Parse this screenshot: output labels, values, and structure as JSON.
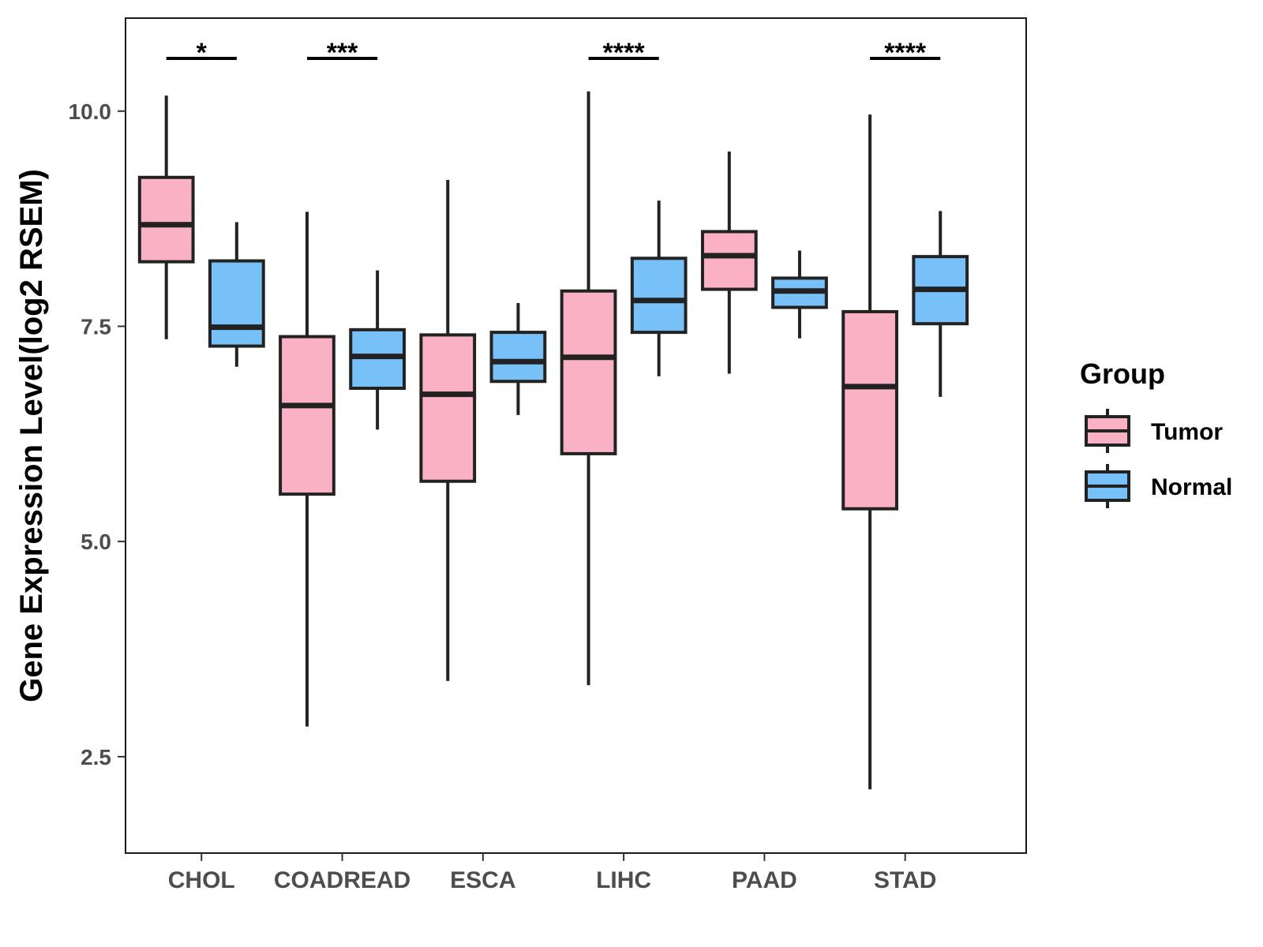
{
  "chart_data": {
    "type": "boxplot",
    "title": "",
    "xlabel": "",
    "ylabel": "Gene Expression Level(log2 RSEM)",
    "ylim": [
      1.38,
      11.08
    ],
    "yticks": [
      2.5,
      5.0,
      7.5,
      10.0
    ],
    "ytick_labels": [
      "2.5",
      "5.0",
      "7.5",
      "10.0"
    ],
    "categories": [
      "CHOL",
      "COADREAD",
      "ESCA",
      "LIHC",
      "PAAD",
      "STAD"
    ],
    "legend": {
      "title": "Group",
      "position": "right",
      "entries": [
        {
          "label": "Tumor",
          "color": "#FBB1C4"
        },
        {
          "label": "Normal",
          "color": "#77C1F8"
        }
      ]
    },
    "series": [
      {
        "name": "Tumor",
        "color": "#FBB1C4",
        "boxes": [
          {
            "category": "CHOL",
            "min": 7.35,
            "q1": 8.25,
            "median": 8.68,
            "q3": 9.23,
            "max": 10.18
          },
          {
            "category": "COADREAD",
            "min": 2.85,
            "q1": 5.55,
            "median": 6.58,
            "q3": 7.38,
            "max": 8.83
          },
          {
            "category": "ESCA",
            "min": 3.38,
            "q1": 5.7,
            "median": 6.71,
            "q3": 7.4,
            "max": 9.2
          },
          {
            "category": "LIHC",
            "min": 3.33,
            "q1": 6.02,
            "median": 7.14,
            "q3": 7.91,
            "max": 10.23
          },
          {
            "category": "PAAD",
            "min": 6.95,
            "q1": 7.93,
            "median": 8.32,
            "q3": 8.6,
            "max": 9.53
          },
          {
            "category": "STAD",
            "min": 2.12,
            "q1": 5.38,
            "median": 6.8,
            "q3": 7.67,
            "max": 9.96
          }
        ]
      },
      {
        "name": "Normal",
        "color": "#77C1F8",
        "boxes": [
          {
            "category": "CHOL",
            "min": 7.03,
            "q1": 7.27,
            "median": 7.49,
            "q3": 8.26,
            "max": 8.71
          },
          {
            "category": "COADREAD",
            "min": 6.3,
            "q1": 6.78,
            "median": 7.15,
            "q3": 7.46,
            "max": 8.15
          },
          {
            "category": "ESCA",
            "min": 6.47,
            "q1": 6.86,
            "median": 7.09,
            "q3": 7.43,
            "max": 7.77
          },
          {
            "category": "LIHC",
            "min": 6.92,
            "q1": 7.43,
            "median": 7.8,
            "q3": 8.29,
            "max": 8.96
          },
          {
            "category": "PAAD",
            "min": 7.36,
            "q1": 7.72,
            "median": 7.91,
            "q3": 8.06,
            "max": 8.38
          },
          {
            "category": "STAD",
            "min": 6.68,
            "q1": 7.53,
            "median": 7.93,
            "q3": 8.31,
            "max": 8.84
          }
        ]
      }
    ],
    "significance": [
      {
        "category": "CHOL",
        "label": "*"
      },
      {
        "category": "COADREAD",
        "label": "***"
      },
      {
        "category": "LIHC",
        "label": "****"
      },
      {
        "category": "STAD",
        "label": "****"
      }
    ],
    "grid": false
  }
}
